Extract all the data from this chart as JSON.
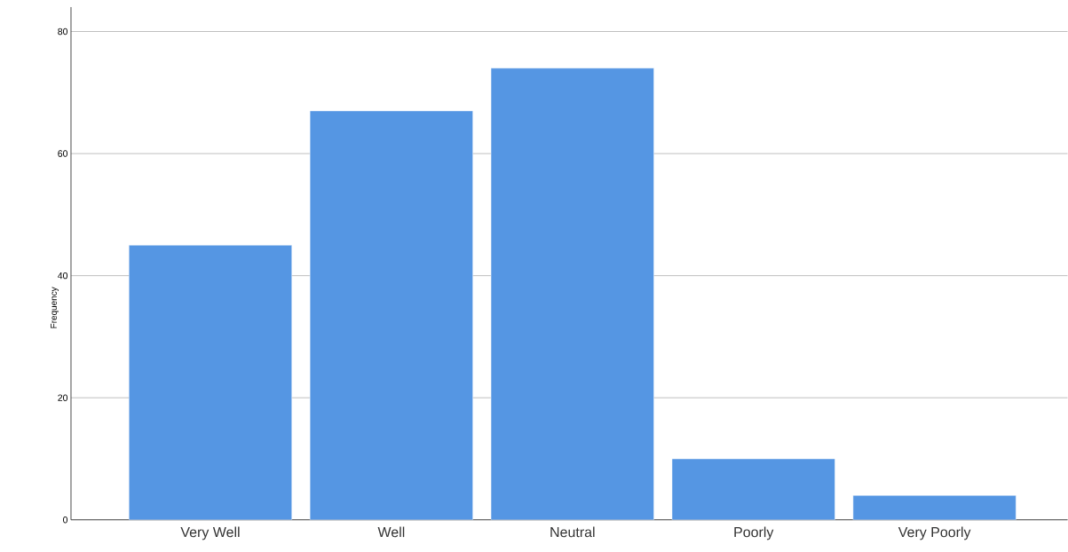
{
  "chart_data": {
    "type": "bar",
    "ylabel": "Frequency",
    "categories": [
      "Very Well",
      "Well",
      "Neutral",
      "Poorly",
      "Very Poorly"
    ],
    "values": [
      45,
      67,
      74,
      10,
      4
    ],
    "color": "#5596e3",
    "ylim": [
      0,
      84
    ],
    "yticks": [
      0,
      20,
      40,
      60,
      80
    ],
    "grid": "y"
  }
}
